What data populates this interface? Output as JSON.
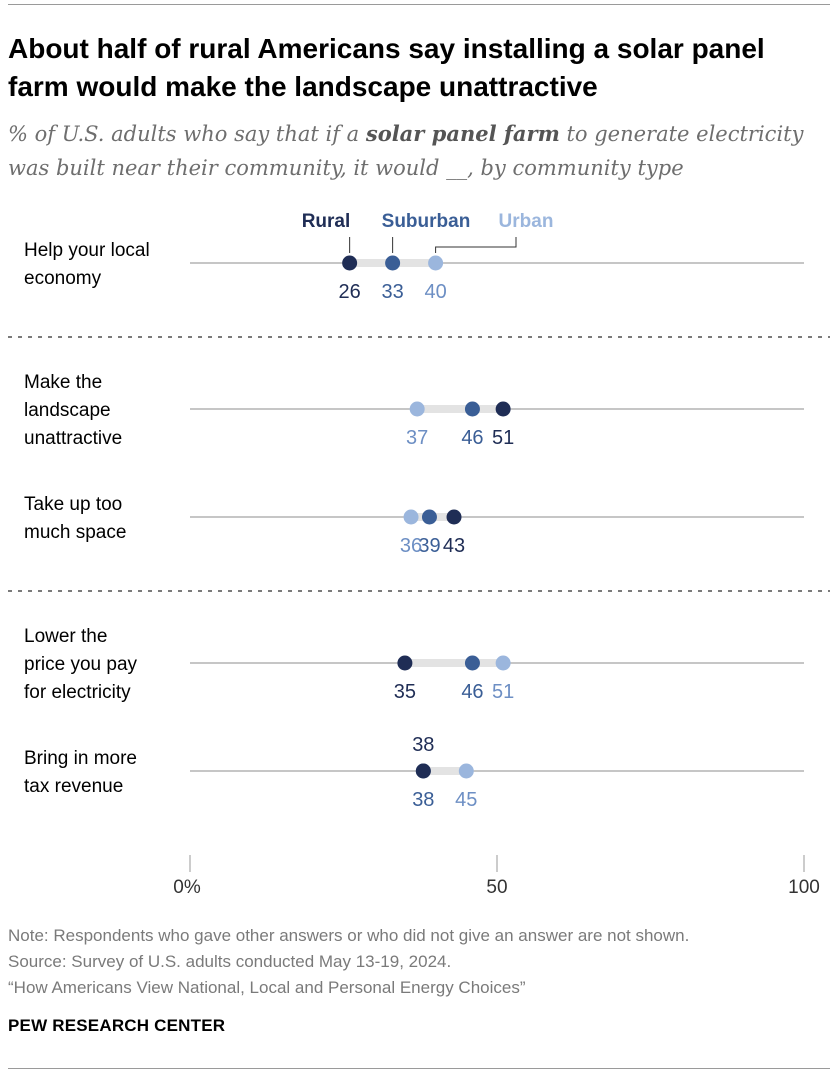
{
  "title": "About half of rural Americans say installing a solar panel farm would make the landscape unattractive",
  "subtitle": {
    "before": "% of U.S. adults who say that if a ",
    "emphasis": "solar panel farm",
    "after": " to generate electricity was built near their community, it would __, by community type"
  },
  "chart_data": {
    "type": "dot",
    "series": [
      {
        "key": "rural",
        "name": "Rural",
        "color": "#1f2d55"
      },
      {
        "key": "suburban",
        "name": "Suburban",
        "color": "#3a5e96"
      },
      {
        "key": "urban",
        "name": "Urban",
        "color": "#9bb6dd"
      }
    ],
    "groups": [
      {
        "items": [
          {
            "label": [
              "Help your local",
              "economy"
            ],
            "rural": 26,
            "suburban": 33,
            "urban": 40
          }
        ]
      },
      {
        "items": [
          {
            "label": [
              "Make the",
              "landscape",
              "unattractive"
            ],
            "rural": 51,
            "suburban": 46,
            "urban": 37
          },
          {
            "label": [
              "Take up too",
              "much space"
            ],
            "rural": 43,
            "suburban": 39,
            "urban": 36
          }
        ]
      },
      {
        "items": [
          {
            "label": [
              "Lower the",
              "price you pay",
              "for electricity"
            ],
            "rural": 35,
            "suburban": 46,
            "urban": 51
          },
          {
            "label": [
              "Bring in more",
              "tax revenue"
            ],
            "rural": 38,
            "suburban": 38,
            "urban": 45
          }
        ]
      }
    ],
    "xlim": [
      0,
      100
    ],
    "x_ticks": [
      0,
      50,
      100
    ],
    "x_tick_labels": [
      "0%",
      "50",
      "100"
    ],
    "legend_placement": "above-first-row"
  },
  "footer": {
    "note": "Note: Respondents who gave other answers or who did not give an answer are not shown.",
    "source": "Source: Survey of U.S. adults conducted May 13-19, 2024.",
    "report": "“How Americans View National, Local and Personal Energy Choices”",
    "brand": "PEW RESEARCH CENTER"
  },
  "colors": {
    "rural": "#1f2d55",
    "suburban": "#3a5e96",
    "urban": "#9bb6dd",
    "range_bar": "#e3e3e3",
    "axis_line": "#8e8e8e"
  }
}
